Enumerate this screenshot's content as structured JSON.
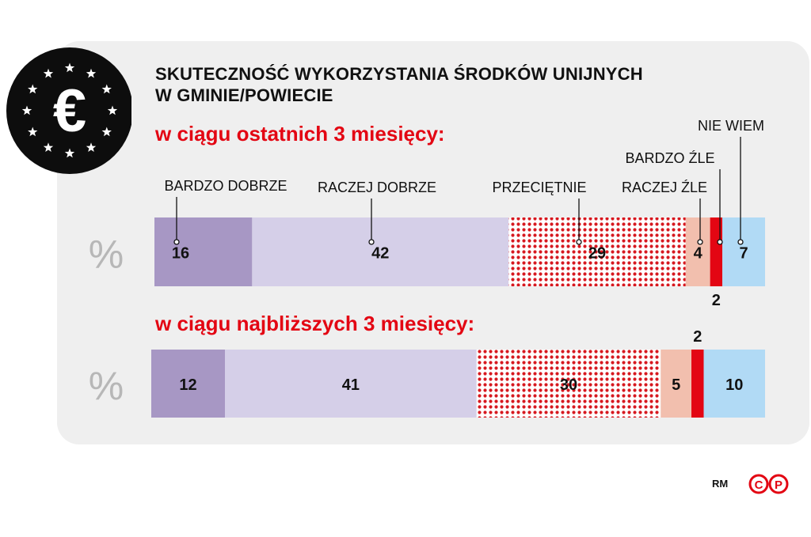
{
  "title_line1": "SKUTECZNOŚĆ WYKORZYSTANIA ŚRODKÓW UNIJNYCH",
  "title_line2": "W GMINIE/POWIECIE",
  "euro_symbol": "€",
  "credit": "RM",
  "logo_text": "CP",
  "colors": {
    "BARDZO DOBRZE": "#a797c4",
    "RACZEJ DOBRZE": "#d5cfe8",
    "PRZECIĘTNIE": "#d71920",
    "RACZEJ ŹLE": "#f2bfae",
    "BARDZO ŹLE": "#e30613",
    "NIE WIEM": "#b1daf5",
    "accent": "#e30613"
  },
  "chart_data": {
    "type": "bar",
    "orientation": "horizontal-stacked",
    "unit": "%",
    "categories": [
      "BARDZO DOBRZE",
      "RACZEJ DOBRZE",
      "PRZECIĘTNIE",
      "RACZEJ ŹLE",
      "BARDZO ŹLE",
      "NIE WIEM"
    ],
    "series": [
      {
        "name": "w ciągu ostatnich 3 miesięcy:",
        "values": [
          16,
          42,
          29,
          4,
          2,
          7
        ]
      },
      {
        "name": "w ciągu najbliższych 3 miesięcy:",
        "values": [
          12,
          41,
          30,
          5,
          2,
          10
        ]
      }
    ],
    "pattern": {
      "PRZECIĘTNIE": "dots"
    }
  }
}
